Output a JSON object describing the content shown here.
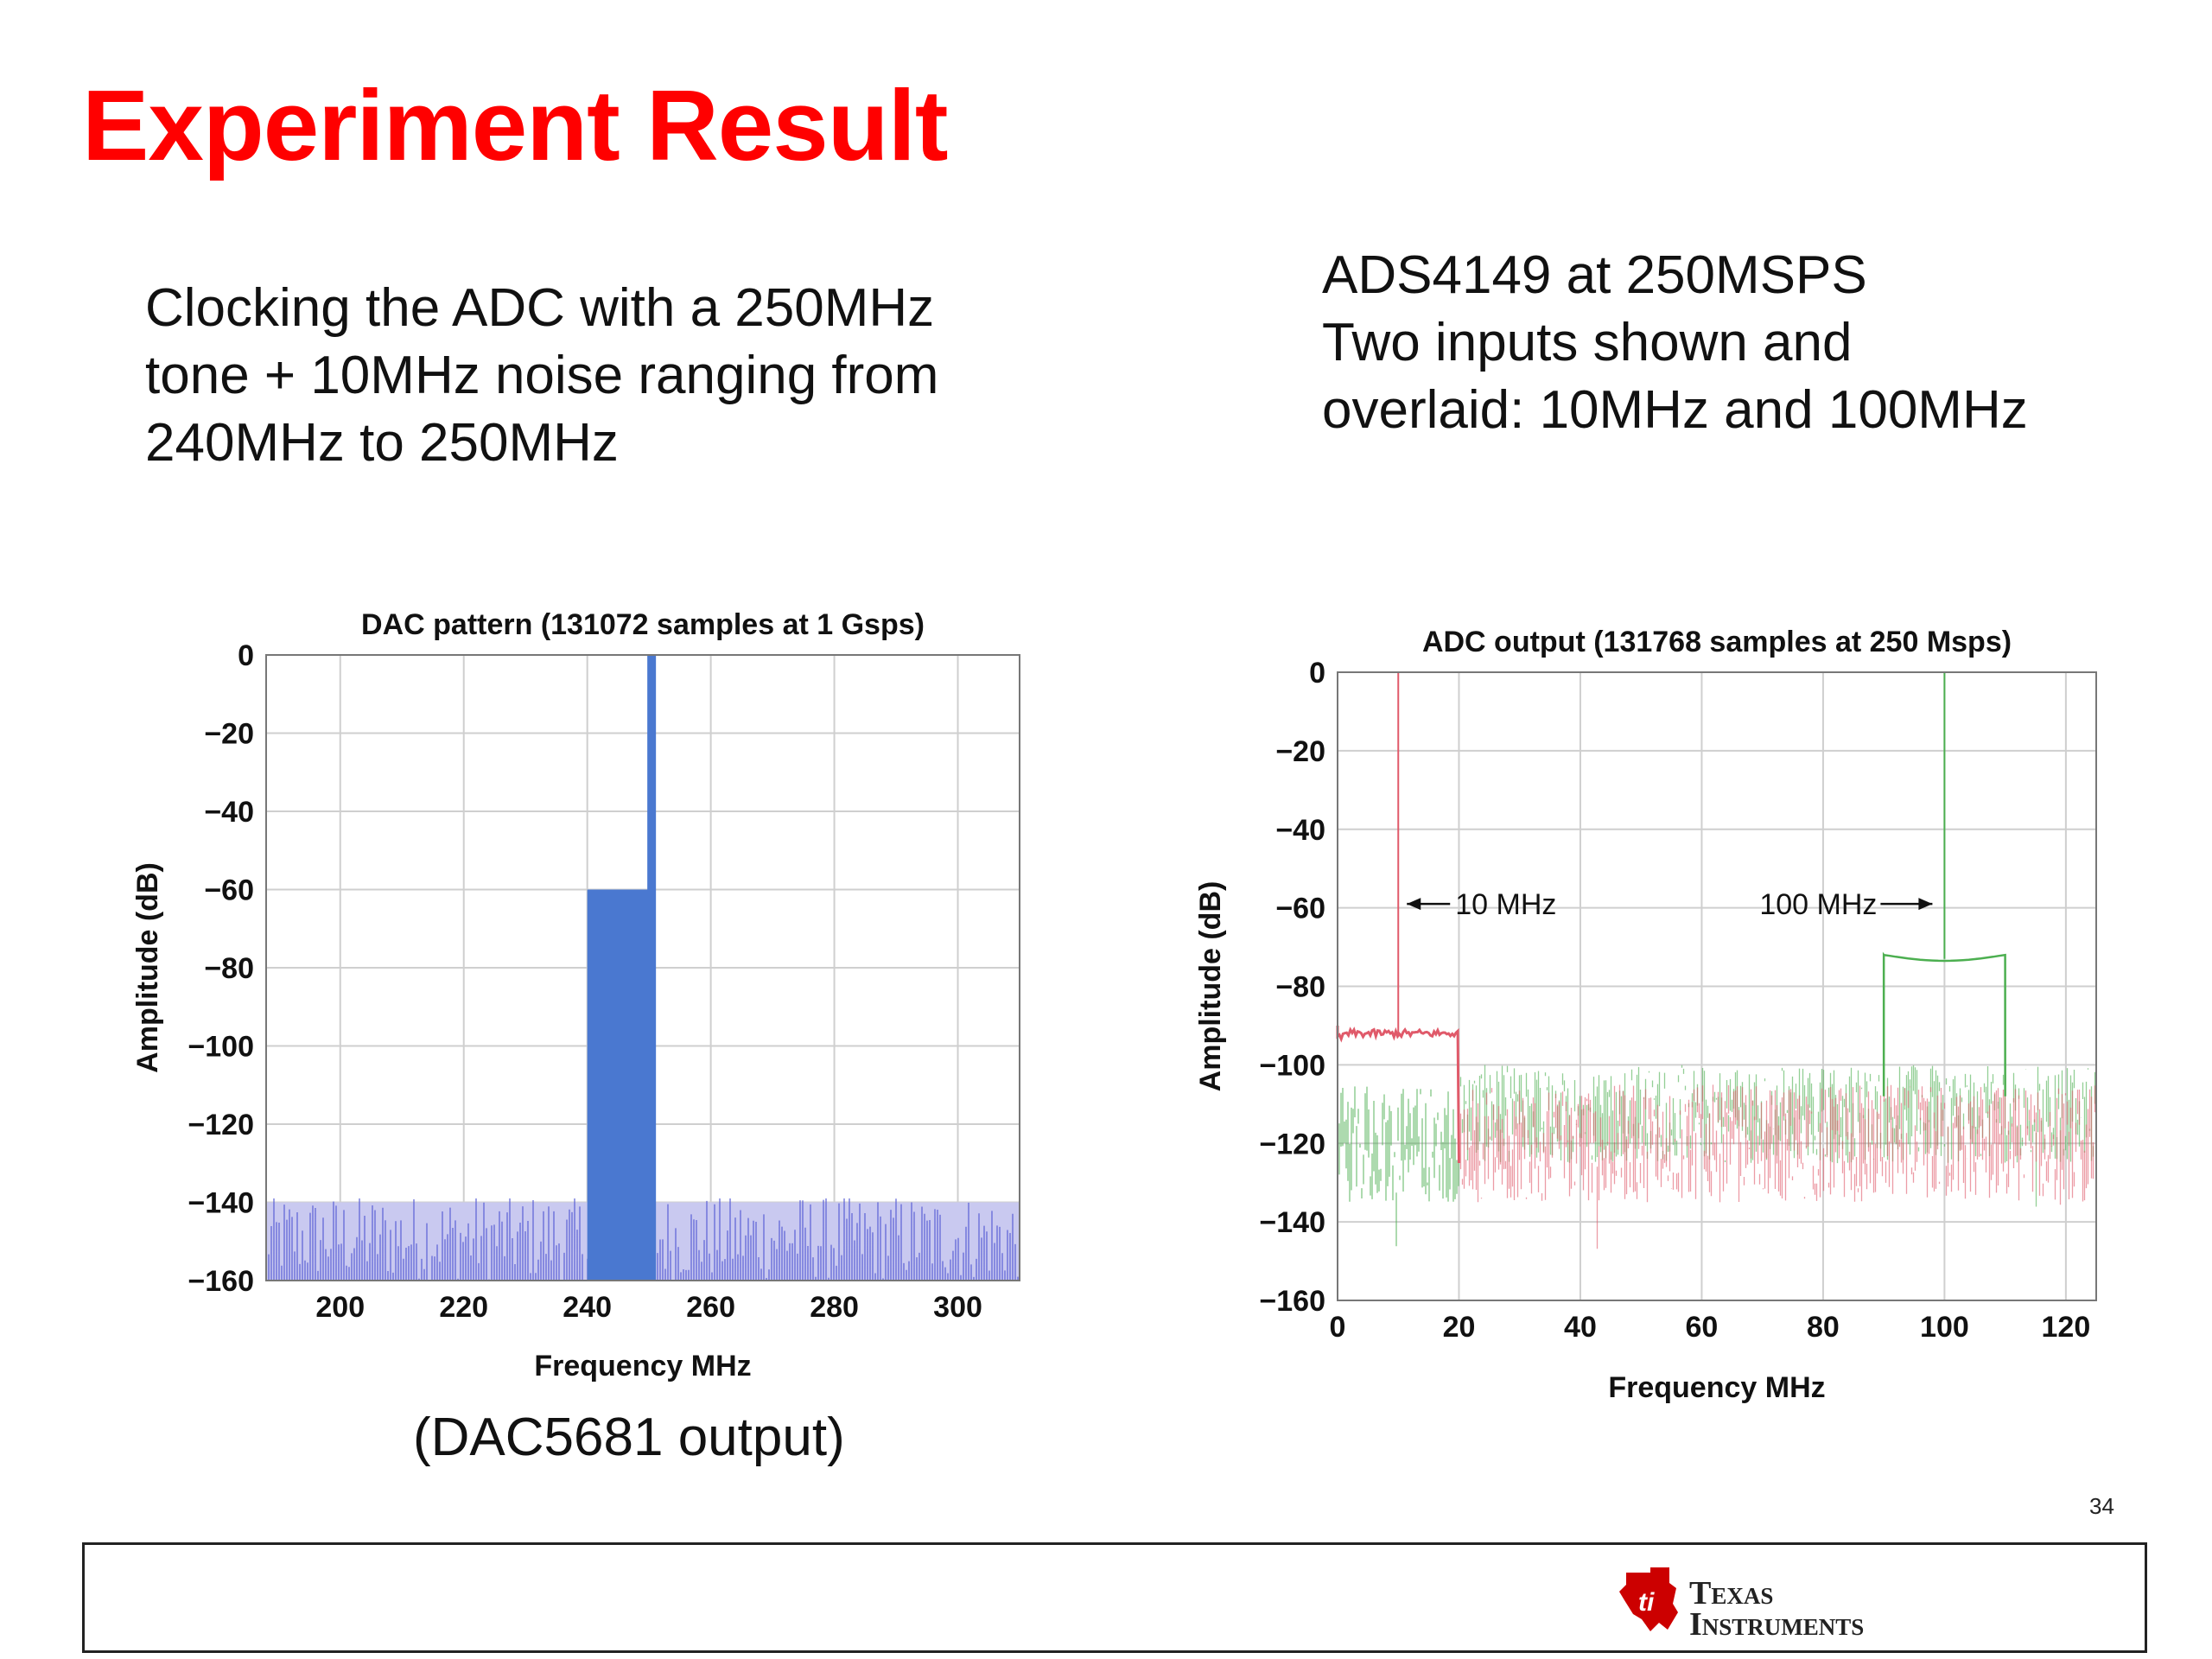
{
  "slide": {
    "title": "Experiment Result",
    "left_text": [
      "Clocking the ADC with a 250MHz",
      "tone + 10MHz noise ranging from",
      "240MHz to 250MHz"
    ],
    "right_text": [
      "ADS4149 at 250MSPS",
      "Two inputs shown and",
      "overlaid: 10MHz and 100MHz"
    ],
    "caption": "(DAC5681 output)",
    "page_number": "34",
    "logo": {
      "line1": "Texas",
      "line2": "Instruments",
      "color": "#cc0000"
    }
  },
  "chart_data": [
    {
      "type": "area",
      "title": "DAC pattern (131072 samples at 1 Gsps)",
      "xlabel": "Frequency MHz",
      "ylabel": "Amplitude (dB)",
      "xlim": [
        188,
        310
      ],
      "ylim": [
        -160,
        0
      ],
      "xticks": [
        200,
        220,
        240,
        260,
        280,
        300
      ],
      "yticks": [
        0,
        -20,
        -40,
        -60,
        -80,
        -100,
        -120,
        -140,
        -160
      ],
      "grid": true,
      "series": [
        {
          "color": "#5b5fd6",
          "noise_floor_range": [
            -150,
            -140
          ],
          "x_range": [
            188,
            310
          ]
        },
        {
          "color": "#4a78d0",
          "band": {
            "x": [
              240,
              250
            ],
            "y": -60
          },
          "tone": {
            "x": 250,
            "y": 0
          }
        }
      ]
    },
    {
      "type": "line",
      "title": "ADC output (131768 samples at 250 Msps)",
      "xlabel": "Frequency MHz",
      "ylabel": "Amplitude (dB)",
      "xlim": [
        0,
        125
      ],
      "ylim": [
        -160,
        0
      ],
      "xticks": [
        0,
        20,
        40,
        60,
        80,
        100,
        120
      ],
      "yticks": [
        0,
        -20,
        -40,
        -60,
        -80,
        -100,
        -120,
        -140,
        -160
      ],
      "grid": true,
      "annotations": [
        {
          "text": "10 MHz",
          "x": 10,
          "y": -59,
          "arrow": "left"
        },
        {
          "text": "100 MHz",
          "x": 100,
          "y": -59,
          "arrow": "right"
        }
      ],
      "series": [
        {
          "color": "#4caf50",
          "tone_x": 100,
          "tone_y": 0,
          "spur_band": {
            "x": [
              90,
              110
            ],
            "y": -72
          },
          "noise_floor": [
            -125,
            -100
          ]
        },
        {
          "color": "#e05a6a",
          "tone_x": 10,
          "tone_y": 0,
          "spur_band": {
            "x": [
              0,
              20
            ],
            "y": -92
          },
          "noise_floor": [
            -135,
            -105
          ]
        }
      ]
    }
  ]
}
